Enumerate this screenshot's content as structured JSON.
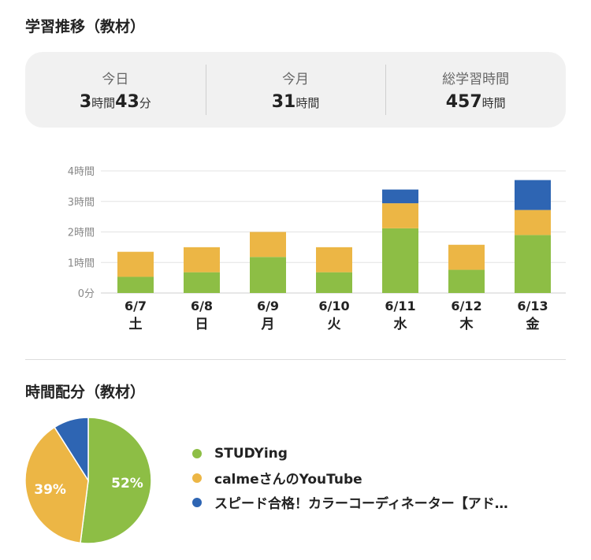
{
  "colors": {
    "green": "#8dbe45",
    "yellow": "#ecb645",
    "blue": "#2e65b3"
  },
  "header": {
    "title": "学習推移（教材）"
  },
  "summary": {
    "today": {
      "label": "今日",
      "hours": "3",
      "hours_unit": "時間",
      "minutes": "43",
      "minutes_unit": "分"
    },
    "month": {
      "label": "今月",
      "hours": "31",
      "unit": "時間"
    },
    "total": {
      "label": "総学習時間",
      "hours": "457",
      "unit": "時間"
    }
  },
  "chart_data": {
    "type": "bar",
    "stacked": true,
    "categories": [
      "6/7",
      "6/8",
      "6/9",
      "6/10",
      "6/11",
      "6/12",
      "6/13"
    ],
    "days": [
      "土",
      "日",
      "月",
      "火",
      "水",
      "木",
      "金"
    ],
    "series": [
      {
        "name": "STUDYing",
        "color": "#8dbe45",
        "values": [
          0.53,
          0.68,
          1.18,
          0.68,
          2.12,
          0.76,
          1.9
        ]
      },
      {
        "name": "calmeさんのYouTube",
        "color": "#ecb645",
        "values": [
          0.82,
          0.82,
          0.82,
          0.82,
          0.82,
          0.82,
          0.82
        ]
      },
      {
        "name": "スピード合格！カラーコーディネーター【アド…",
        "color": "#2e65b3",
        "values": [
          0,
          0,
          0,
          0,
          0.45,
          0,
          0.98
        ]
      }
    ],
    "yticks": [
      "0分",
      "1時間",
      "2時間",
      "3時間",
      "4時間"
    ],
    "ylim": [
      0,
      4
    ],
    "grid": true
  },
  "allocation": {
    "title": "時間配分（教材）",
    "slices": [
      {
        "name": "STUDYing",
        "value": 52,
        "label": "52%",
        "color": "#8dbe45"
      },
      {
        "name": "calmeさんのYouTube",
        "value": 39,
        "label": "39%",
        "color": "#ecb645"
      },
      {
        "name": "スピード合格！カラーコーディネーター【アド…",
        "value": 9,
        "label": "",
        "color": "#2e65b3"
      }
    ]
  }
}
